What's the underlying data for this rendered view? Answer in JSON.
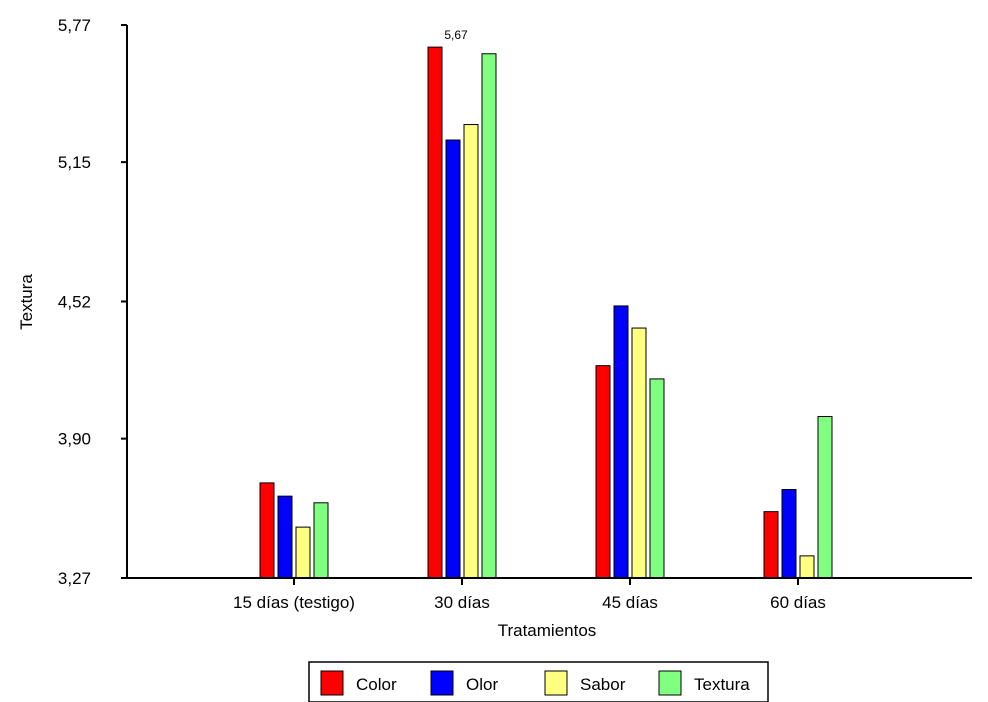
{
  "chart_data": {
    "type": "bar",
    "title": "",
    "xlabel": "Tratamientos",
    "ylabel": "Textura",
    "ylim": [
      3.27,
      5.77
    ],
    "yticks": [
      "3,27",
      "3,90",
      "4,52",
      "5,15",
      "5,77"
    ],
    "ytick_values": [
      3.27,
      3.9,
      4.52,
      5.15,
      5.77
    ],
    "categories": [
      "15 días (testigo)",
      "30 días",
      "45 días",
      "60 días"
    ],
    "series": [
      {
        "name": "Color",
        "color": "#ff0000",
        "values": [
          3.7,
          5.67,
          4.23,
          3.57
        ]
      },
      {
        "name": "Olor",
        "color": "#0000ff",
        "values": [
          3.64,
          5.25,
          4.5,
          3.67
        ]
      },
      {
        "name": "Sabor",
        "color": "#ffff80",
        "values": [
          3.5,
          5.32,
          4.4,
          3.37
        ]
      },
      {
        "name": "Textura",
        "color": "#80ff80",
        "values": [
          3.61,
          5.64,
          4.17,
          4.0
        ]
      }
    ],
    "data_labels": [
      {
        "series": 0,
        "category": 1,
        "text": "5,67"
      }
    ],
    "grid": false,
    "legend_position": "bottom"
  }
}
